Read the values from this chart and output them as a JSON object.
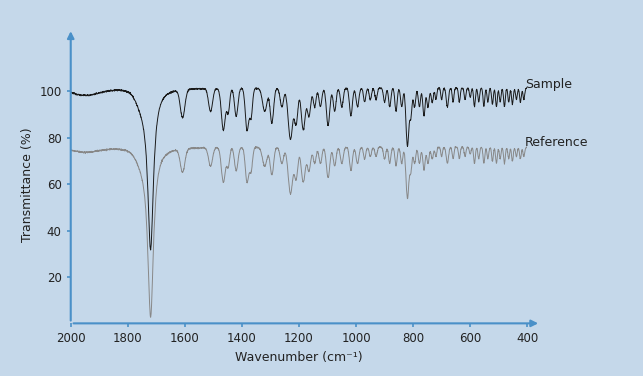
{
  "background_color": "#c5d8ea",
  "axis_color": "#4a90c8",
  "sample_color": "#1a1a1a",
  "reference_color": "#888888",
  "ylabel": "Transmittance (%)",
  "xlabel": "Wavenumber (cm⁻¹)",
  "xmin": 400,
  "xmax": 2000,
  "ymin": 0,
  "ymax": 120,
  "yticks": [
    20,
    40,
    60,
    80,
    100
  ],
  "xticks": [
    2000,
    1800,
    1600,
    1400,
    1200,
    1000,
    800,
    600,
    400
  ],
  "sample_label": "Sample",
  "reference_label": "Reference",
  "figwidth": 6.43,
  "figheight": 3.76,
  "dpi": 100
}
